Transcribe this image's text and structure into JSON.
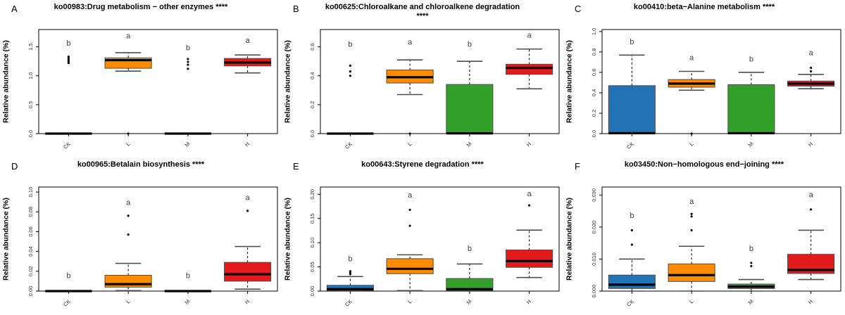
{
  "figure": {
    "background": "#ffffff"
  },
  "chart_data": {
    "type": "boxplot",
    "layout": {
      "rows": 2,
      "cols": 3,
      "grid": false,
      "x_labels_rotated_deg": 45,
      "y_tick_labels_rotated": true
    },
    "group_colors": {
      "CK": "#2273b5",
      "L": "#ff8c00",
      "M": "#33a02c",
      "H": "#e31a1c"
    },
    "box_border_color": "#4d4d4d",
    "median_color": "#000000",
    "outlier_color": "#111111",
    "sig_letter_color": "#404040",
    "panels": [
      {
        "panel_label": "A",
        "title": "ko00983:Drug metabolism − other enzymes ****",
        "ylabel": "Relative abundance (%)",
        "categories": [
          "CK",
          "L",
          "M",
          "H"
        ],
        "ylim": [
          0,
          1.8
        ],
        "yticks": [
          {
            "value": 0,
            "label": "0.0"
          },
          {
            "value": 0.5,
            "label": "0.5"
          },
          {
            "value": 1.0,
            "label": "1.0"
          },
          {
            "value": 1.5,
            "label": "1.5"
          }
        ],
        "boxes": [
          {
            "group": "CK",
            "q1": 0,
            "median": 0,
            "q3": 0,
            "whisker_low": 0,
            "whisker_high": 0,
            "outliers": [
              1.22,
              1.24,
              1.26,
              1.28,
              1.31,
              1.33
            ],
            "sig_letter": "b",
            "sig_letter_y": 1.52
          },
          {
            "group": "L",
            "q1": 1.13,
            "median": 1.27,
            "q3": 1.31,
            "whisker_low": 1.08,
            "whisker_high": 1.4,
            "outliers": [
              0.0
            ],
            "sig_letter": "a",
            "sig_letter_y": 1.65
          },
          {
            "group": "M",
            "q1": 0,
            "median": 0,
            "q3": 0,
            "whisker_low": 0,
            "whisker_high": 0,
            "outliers": [
              1.12,
              1.19,
              1.24,
              1.29
            ],
            "sig_letter": "b",
            "sig_letter_y": 1.44
          },
          {
            "group": "H",
            "q1": 1.17,
            "median": 1.23,
            "q3": 1.3,
            "whisker_low": 1.05,
            "whisker_high": 1.36,
            "outliers": [],
            "sig_letter": "a",
            "sig_letter_y": 1.57
          }
        ]
      },
      {
        "panel_label": "B",
        "title": "ko00625:Chloroalkane and chloroalkene degradation ****",
        "ylabel": "Relative abundance (%)",
        "categories": [
          "CK",
          "L",
          "M",
          "H"
        ],
        "ylim": [
          0,
          0.72
        ],
        "yticks": [
          {
            "value": 0,
            "label": "0.0"
          },
          {
            "value": 0.2,
            "label": "0.2"
          },
          {
            "value": 0.4,
            "label": "0.4"
          },
          {
            "value": 0.6,
            "label": "0.6"
          }
        ],
        "boxes": [
          {
            "group": "CK",
            "q1": 0,
            "median": 0,
            "q3": 0,
            "whisker_low": 0,
            "whisker_high": 0,
            "outliers": [
              0.4,
              0.43,
              0.47
            ],
            "sig_letter": "b",
            "sig_letter_y": 0.6
          },
          {
            "group": "L",
            "q1": 0.35,
            "median": 0.39,
            "q3": 0.44,
            "whisker_low": 0.27,
            "whisker_high": 0.51,
            "outliers": [
              0.0
            ],
            "sig_letter": "a",
            "sig_letter_y": 0.615
          },
          {
            "group": "M",
            "q1": 0,
            "median": 0.002,
            "q3": 0.34,
            "whisker_low": 0,
            "whisker_high": 0.5,
            "outliers": [],
            "sig_letter": "b",
            "sig_letter_y": 0.6
          },
          {
            "group": "H",
            "q1": 0.41,
            "median": 0.455,
            "q3": 0.48,
            "whisker_low": 0.31,
            "whisker_high": 0.585,
            "outliers": [],
            "sig_letter": "a",
            "sig_letter_y": 0.665
          }
        ]
      },
      {
        "panel_label": "C",
        "title": "ko00410:beta−Alanine metabolism ****",
        "ylabel": "Relative abundance (%)",
        "categories": [
          "CK",
          "L",
          "M",
          "H"
        ],
        "ylim": [
          0,
          1.02
        ],
        "yticks": [
          {
            "value": 0,
            "label": "0.0"
          },
          {
            "value": 0.2,
            "label": "0.2"
          },
          {
            "value": 0.4,
            "label": "0.4"
          },
          {
            "value": 0.6,
            "label": "0.6"
          },
          {
            "value": 0.8,
            "label": "0.8"
          },
          {
            "value": 1.0,
            "label": "1.0"
          }
        ],
        "boxes": [
          {
            "group": "CK",
            "q1": 0,
            "median": 0.004,
            "q3": 0.47,
            "whisker_low": 0,
            "whisker_high": 0.77,
            "outliers": [],
            "sig_letter": "b",
            "sig_letter_y": 0.875
          },
          {
            "group": "L",
            "q1": 0.455,
            "median": 0.49,
            "q3": 0.53,
            "whisker_low": 0.425,
            "whisker_high": 0.61,
            "outliers": [
              0.0
            ],
            "sig_letter": "a",
            "sig_letter_y": 0.72
          },
          {
            "group": "M",
            "q1": 0,
            "median": 0.004,
            "q3": 0.48,
            "whisker_low": 0,
            "whisker_high": 0.6,
            "outliers": [],
            "sig_letter": "b",
            "sig_letter_y": 0.705
          },
          {
            "group": "H",
            "q1": 0.465,
            "median": 0.49,
            "q3": 0.515,
            "whisker_low": 0.44,
            "whisker_high": 0.58,
            "outliers": [
              0.61,
              0.645
            ],
            "sig_letter": "a",
            "sig_letter_y": 0.77
          }
        ]
      },
      {
        "panel_label": "D",
        "title": "ko00965:Betalain biosynthesis ****",
        "ylabel": "Relative abundance (%)",
        "categories": [
          "CK",
          "L",
          "M",
          "H"
        ],
        "ylim": [
          0,
          0.105
        ],
        "yticks": [
          {
            "value": 0,
            "label": "0.00"
          },
          {
            "value": 0.02,
            "label": "0.02"
          },
          {
            "value": 0.04,
            "label": "0.04"
          },
          {
            "value": 0.06,
            "label": "0.06"
          },
          {
            "value": 0.08,
            "label": "0.08"
          },
          {
            "value": 0.1,
            "label": "0.10"
          }
        ],
        "boxes": [
          {
            "group": "CK",
            "q1": 0,
            "median": 0,
            "q3": 0,
            "whisker_low": 0,
            "whisker_high": 0,
            "outliers": [],
            "sig_letter": "b",
            "sig_letter_y": 0.013
          },
          {
            "group": "L",
            "q1": 0.004,
            "median": 0.007,
            "q3": 0.016,
            "whisker_low": 0.0005,
            "whisker_high": 0.028,
            "outliers": [
              0.057,
              0.076
            ],
            "sig_letter": "a",
            "sig_letter_y": 0.087
          },
          {
            "group": "M",
            "q1": 0,
            "median": 0,
            "q3": 0,
            "whisker_low": 0,
            "whisker_high": 0,
            "outliers": [],
            "sig_letter": "b",
            "sig_letter_y": 0.013
          },
          {
            "group": "H",
            "q1": 0.01,
            "median": 0.017,
            "q3": 0.029,
            "whisker_low": 0.002,
            "whisker_high": 0.045,
            "outliers": [
              0.081
            ],
            "sig_letter": "a",
            "sig_letter_y": 0.092
          }
        ]
      },
      {
        "panel_label": "E",
        "title": "ko00643:Styrene degradation ****",
        "ylabel": "Relative abundance (%)",
        "categories": [
          "CK",
          "L",
          "M",
          "H"
        ],
        "ylim": [
          0,
          0.215
        ],
        "yticks": [
          {
            "value": 0,
            "label": "0.00"
          },
          {
            "value": 0.05,
            "label": "0.05"
          },
          {
            "value": 0.1,
            "label": "0.10"
          },
          {
            "value": 0.15,
            "label": "0.15"
          },
          {
            "value": 0.2,
            "label": "0.20"
          }
        ],
        "boxes": [
          {
            "group": "CK",
            "q1": 0.001,
            "median": 0.004,
            "q3": 0.012,
            "whisker_low": 0,
            "whisker_high": 0.03,
            "outliers": [
              0.035,
              0.038,
              0.041
            ],
            "sig_letter": "b",
            "sig_letter_y": 0.062
          },
          {
            "group": "L",
            "q1": 0.036,
            "median": 0.046,
            "q3": 0.067,
            "whisker_low": 0.001,
            "whisker_high": 0.075,
            "outliers": [
              0.135,
              0.168
            ],
            "sig_letter": "a",
            "sig_letter_y": 0.193
          },
          {
            "group": "M",
            "q1": 0.001,
            "median": 0.004,
            "q3": 0.026,
            "whisker_low": 0,
            "whisker_high": 0.056,
            "outliers": [],
            "sig_letter": "b",
            "sig_letter_y": 0.083
          },
          {
            "group": "H",
            "q1": 0.049,
            "median": 0.062,
            "q3": 0.085,
            "whisker_low": 0.028,
            "whisker_high": 0.126,
            "outliers": [
              0.177
            ],
            "sig_letter": "a",
            "sig_letter_y": 0.196
          }
        ]
      },
      {
        "panel_label": "F",
        "title": "ko03450:Non−homologous end−joining ****",
        "ylabel": "Relative abundance (%)",
        "categories": [
          "CK",
          "L",
          "M",
          "H"
        ],
        "ylim": [
          0,
          0.0325
        ],
        "yticks": [
          {
            "value": 0,
            "label": "0.000"
          },
          {
            "value": 0.01,
            "label": "0.010"
          },
          {
            "value": 0.02,
            "label": "0.020"
          },
          {
            "value": 0.03,
            "label": "0.030"
          }
        ],
        "boxes": [
          {
            "group": "CK",
            "q1": 0.0008,
            "median": 0.002,
            "q3": 0.005,
            "whisker_low": 0,
            "whisker_high": 0.01,
            "outliers": [
              0.0145,
              0.019
            ],
            "sig_letter": "b",
            "sig_letter_y": 0.0228
          },
          {
            "group": "L",
            "q1": 0.003,
            "median": 0.005,
            "q3": 0.0085,
            "whisker_low": 0,
            "whisker_high": 0.014,
            "outliers": [
              0.019,
              0.0233,
              0.0241
            ],
            "sig_letter": "a",
            "sig_letter_y": 0.0272
          },
          {
            "group": "M",
            "q1": 0.0008,
            "median": 0.0014,
            "q3": 0.0022,
            "whisker_low": 0,
            "whisker_high": 0.0036,
            "outliers": [
              0.0078,
              0.0088
            ],
            "sig_letter": "b",
            "sig_letter_y": 0.0125
          },
          {
            "group": "H",
            "q1": 0.0055,
            "median": 0.0066,
            "q3": 0.0115,
            "whisker_low": 0.0036,
            "whisker_high": 0.019,
            "outliers": [
              0.0255
            ],
            "sig_letter": "a",
            "sig_letter_y": 0.0293
          }
        ]
      }
    ]
  }
}
